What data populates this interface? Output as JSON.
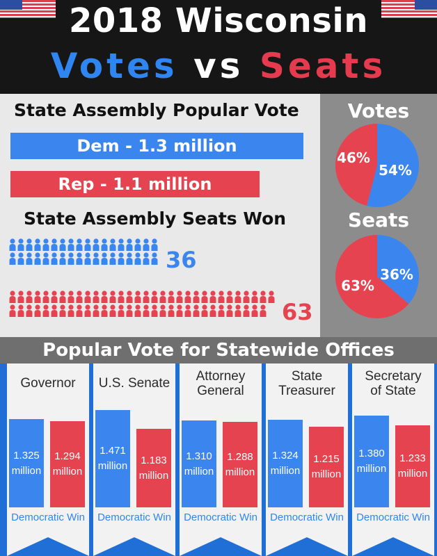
{
  "header": {
    "line1": "2018 Wisconsin",
    "votes_word": "Votes",
    "vs_word": "vs",
    "seats_word": "Seats"
  },
  "colors": {
    "dem": "#3b86ee",
    "rep": "#e5434f",
    "header_bg": "#161616",
    "panel_gray": "#8c8c8c",
    "banner_blue": "#1f6fd6"
  },
  "popular_vote": {
    "heading": "State Assembly Popular Vote",
    "dem_label": "Dem - 1.3 million",
    "rep_label": "Rep - 1.1 million"
  },
  "seats_won": {
    "heading": "State Assembly Seats Won",
    "dem": "36",
    "rep": "63"
  },
  "pies": {
    "votes_title": "Votes",
    "seats_title": "Seats"
  },
  "statewide": {
    "heading": "Popular Vote for Statewide Offices"
  },
  "icons": {
    "person": "person-icon",
    "flag": "us-flag-icon"
  },
  "chart_data": [
    {
      "type": "bar",
      "title": "State Assembly Popular Vote",
      "categories": [
        "Dem",
        "Rep"
      ],
      "values": [
        1.3,
        1.1
      ],
      "labels": [
        "Dem - 1.3 million",
        "Rep - 1.1 million"
      ],
      "orientation": "horizontal"
    },
    {
      "type": "bar",
      "title": "State Assembly Seats Won",
      "categories": [
        "Dem",
        "Rep"
      ],
      "values": [
        36,
        63
      ],
      "display": "pictogram"
    },
    {
      "type": "pie",
      "title": "Votes",
      "categories": [
        "Dem",
        "Rep"
      ],
      "values": [
        54,
        46
      ],
      "labels": [
        "54%",
        "46%"
      ]
    },
    {
      "type": "pie",
      "title": "Seats",
      "categories": [
        "Dem",
        "Rep"
      ],
      "values": [
        36,
        63
      ],
      "labels": [
        "36%",
        "63%"
      ]
    },
    {
      "type": "bar",
      "title": "Popular Vote for Statewide Offices",
      "offices": [
        {
          "name": "Governor",
          "dem": 1.325,
          "rep": 1.294,
          "dem_label": [
            "1.325",
            "million"
          ],
          "rep_label": [
            "1.294",
            "million"
          ],
          "result": "Democratic Win"
        },
        {
          "name": "U.S. Senate",
          "dem": 1.471,
          "rep": 1.183,
          "dem_label": [
            "1.471",
            "million"
          ],
          "rep_label": [
            "1.183",
            "million"
          ],
          "result": "Democratic Win"
        },
        {
          "name": "Attorney General",
          "dem": 1.31,
          "rep": 1.288,
          "dem_label": [
            "1.310",
            "million"
          ],
          "rep_label": [
            "1.288",
            "million"
          ],
          "result": "Democratic Win"
        },
        {
          "name": "State Treasurer",
          "dem": 1.324,
          "rep": 1.215,
          "dem_label": [
            "1.324",
            "million"
          ],
          "rep_label": [
            "1.215",
            "million"
          ],
          "result": "Democratic Win"
        },
        {
          "name": "Secretary of State",
          "dem": 1.38,
          "rep": 1.233,
          "dem_label": [
            "1.380",
            "million"
          ],
          "rep_label": [
            "1.233",
            "million"
          ],
          "result": "Democratic Win"
        }
      ]
    }
  ]
}
